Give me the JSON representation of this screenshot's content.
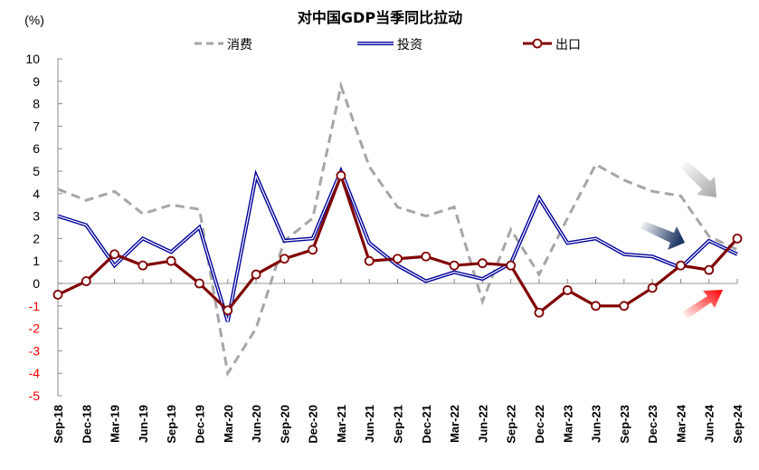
{
  "chart_data": {
    "type": "line",
    "title": "对中国GDP当季同比拉动",
    "ylabel": "(%)",
    "ylim": [
      -5,
      10
    ],
    "yticks": [
      10,
      9,
      8,
      7,
      6,
      5,
      4,
      3,
      2,
      1,
      0,
      -1,
      -2,
      -3,
      -4,
      -5
    ],
    "negative_tick_color": "#FF0000",
    "grid": false,
    "legend": "top",
    "categories": [
      "Sep-18",
      "Dec-18",
      "Mar-19",
      "Jun-19",
      "Sep-19",
      "Dec-19",
      "Mar-20",
      "Jun-20",
      "Sep-20",
      "Dec-20",
      "Mar-21",
      "Jun-21",
      "Sep-21",
      "Dec-21",
      "Mar-22",
      "Jun-22",
      "Sep-22",
      "Dec-22",
      "Mar-23",
      "Jun-23",
      "Sep-23",
      "Dec-23",
      "Mar-24",
      "Jun-24",
      "Sep-24"
    ],
    "series": [
      {
        "name": "消费",
        "color": "#A6A6A6",
        "style": "dashed",
        "values": [
          4.2,
          3.7,
          4.1,
          3.1,
          3.5,
          3.3,
          -4.0,
          -2.0,
          1.9,
          2.9,
          8.8,
          5.2,
          3.4,
          3.0,
          3.4,
          -0.8,
          2.4,
          0.4,
          2.9,
          5.3,
          4.6,
          4.1,
          3.9,
          2.1,
          1.5
        ]
      },
      {
        "name": "投资",
        "color": "#000099",
        "style": "double",
        "values": [
          3.0,
          2.6,
          0.8,
          2.0,
          1.4,
          2.5,
          -1.7,
          4.8,
          1.9,
          2.0,
          5.0,
          1.8,
          0.8,
          0.1,
          0.5,
          0.2,
          0.9,
          3.8,
          1.8,
          2.0,
          1.3,
          1.2,
          0.7,
          1.9,
          1.3
        ]
      },
      {
        "name": "出口",
        "color": "#800000",
        "style": "solid-marker",
        "values": [
          -0.5,
          0.1,
          1.3,
          0.8,
          1.0,
          0.0,
          -1.2,
          0.4,
          1.1,
          1.5,
          4.8,
          1.0,
          1.1,
          1.2,
          0.8,
          0.9,
          0.8,
          -1.3,
          -0.3,
          -1.0,
          -1.0,
          -0.2,
          0.8,
          0.6,
          2.0
        ]
      }
    ],
    "annotations": [
      {
        "type": "arrow",
        "direction": "down",
        "color": "#A6A6A6"
      },
      {
        "type": "arrow",
        "direction": "down",
        "color": "#1F3864"
      },
      {
        "type": "arrow",
        "direction": "up",
        "color": "#FF0000"
      }
    ]
  }
}
